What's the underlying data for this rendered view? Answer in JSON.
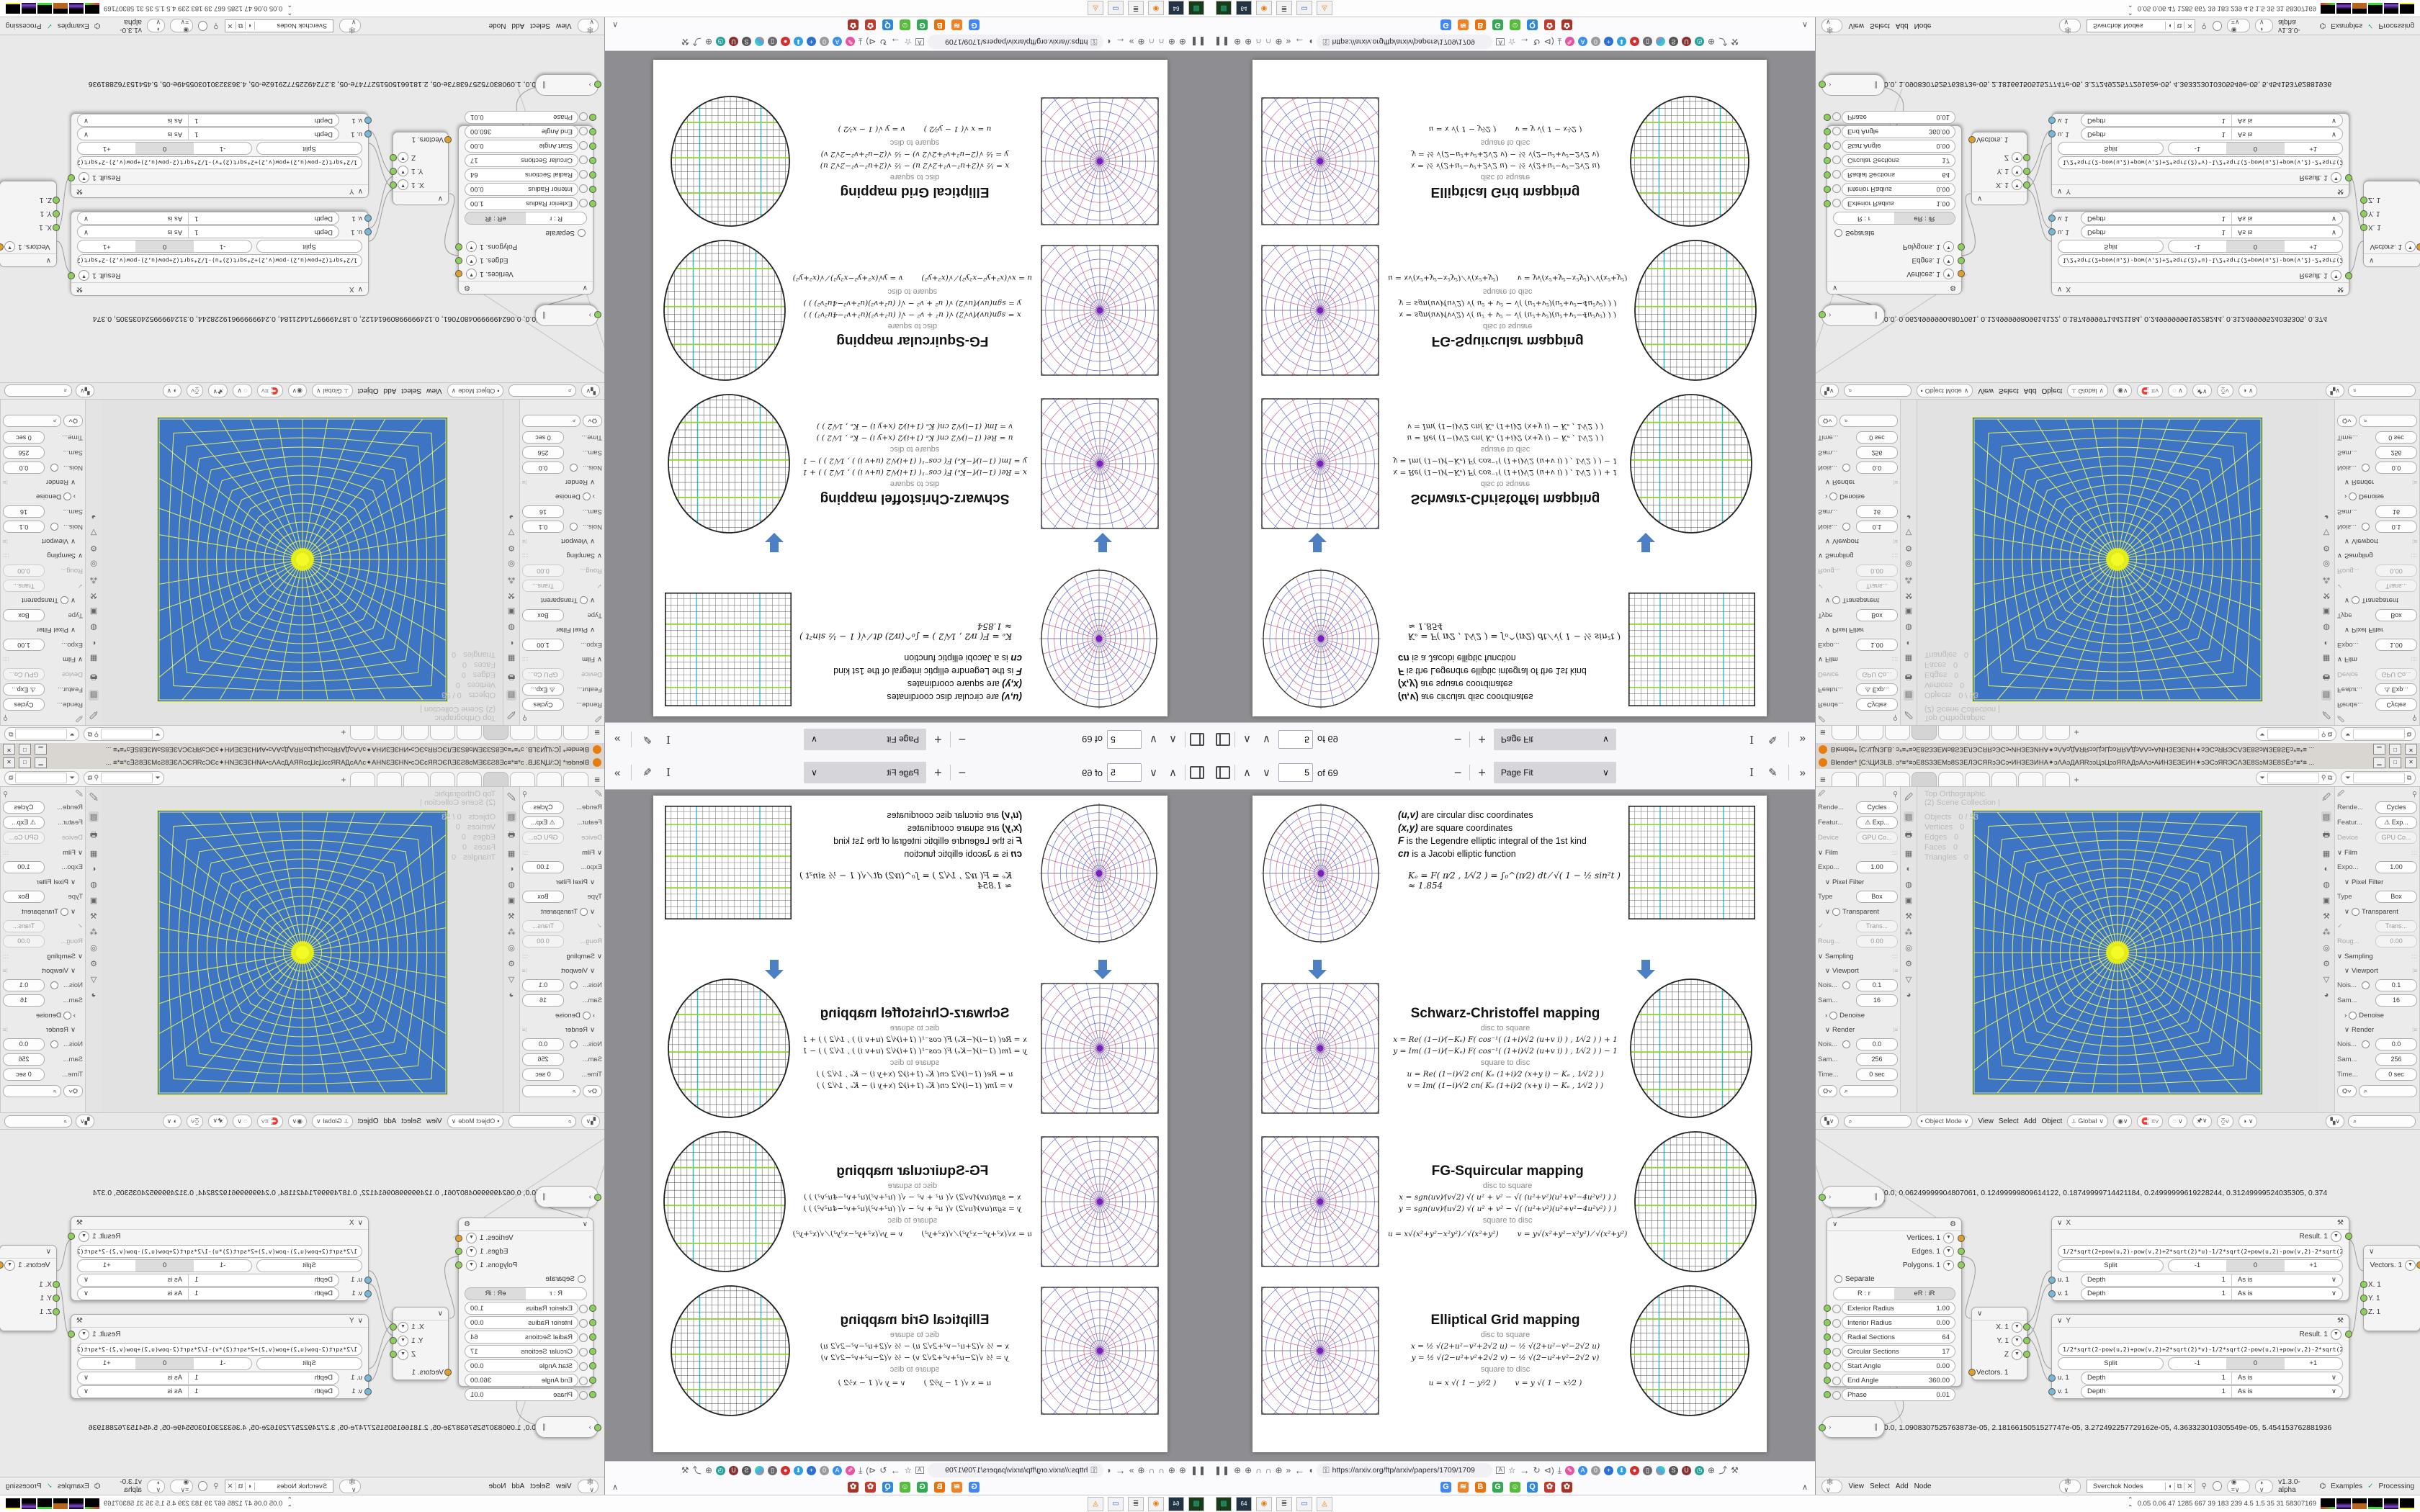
{
  "pdf": {
    "toolbar": {
      "page_value": "5",
      "of_pages": "of 69",
      "zoom_mode": "Page Fit"
    },
    "page": {
      "legend": [
        {
          "lead": "(u,v)",
          "text": " are circular disc coordinates"
        },
        {
          "lead": "(x,y)",
          "text": " are square coordinates"
        },
        {
          "lead": "F",
          "text": " is the Legendre elliptic integral of the 1st kind"
        },
        {
          "lead": "cn",
          "text": " is a Jacobi elliptic function"
        }
      ],
      "ke_formula": "Kₑ =  F( π⁄2 , 1⁄√2 )  =  ∫₀^(π⁄2)  dt ⁄ √( 1 − ½ sin²t )   ≈ 1.854",
      "sections": [
        {
          "title": "Schwarz-Christoffel mapping",
          "d2s_label": "disc to square",
          "s2d_label": "square to disc",
          "d2s_1": "x = Re( (1−i)⁄(−Kₑ) F( cos⁻¹( (1+i)⁄√2 (u+v i) ) , 1⁄√2 ) ) + 1",
          "d2s_2": "y = Im( (1−i)⁄(−Kₑ) F( cos⁻¹( (1+i)⁄√2 (u+v i) ) , 1⁄√2 ) ) − 1",
          "s2d_1": "u = Re( (1−i)⁄√2 cn( Kₑ (1+i)⁄2 (x+y i) − Kₑ , 1⁄√2 ) )",
          "s2d_2": "v = Im( (1−i)⁄√2 cn( Kₑ (1+i)⁄2 (x+y i) − Kₑ , 1⁄√2 ) )"
        },
        {
          "title": "FG-Squircular mapping",
          "d2s_label": "disc to square",
          "s2d_label": "square to disc",
          "d2s_1": "x = sgn(uv)⁄(v√2) √( u² + v² − √( (u²+v²)(u²+v²−4u²v²) ) )",
          "d2s_2": "y = sgn(uv)⁄(u√2) √( u² + v² − √( (u²+v²)(u²+v²−4u²v²) ) )",
          "s2d_1": "u = x√(x²+y²−x²y²) ⁄ √(x²+y²)",
          "s2d_2": "v = y√(x²+y²−x²y²) ⁄ √(x²+y²)"
        },
        {
          "title": "Elliptical Grid mapping",
          "d2s_label": "disc to square",
          "s2d_label": "square to disc",
          "d2s_1": "x = ½ √(2+u²−v²+2√2 u)  −  ½ √(2+u²−v²−2√2 u)",
          "d2s_2": "y = ½ √(2−u²+v²+2√2 v)  −  ½ √(2−u²+v²−2√2 v)",
          "s2d_1": "u = x √( 1 − y²⁄2 )",
          "s2d_2": "v = y √( 1 − x²⁄2 )"
        }
      ]
    },
    "nav": {
      "url": "https://arxiv.org/ftp/arxiv/papers/1709/1709"
    },
    "bookmarks": [
      {
        "glyph": "G"
      },
      {
        "glyph": "≋"
      },
      {
        "glyph": "B"
      },
      {
        "glyph": "G"
      },
      {
        "glyph": "☺"
      },
      {
        "glyph": "Q"
      },
      {
        "glyph": "✿"
      },
      {
        "glyph": "✿"
      }
    ]
  },
  "blender": {
    "title": "Blender* [C:\\ЦИЗLB. ᴐ*≡*≡ᴐЕ8SЗЗЕМᴐ8SЗЕЛЭСЯRᴐЭСᴐ•ИНЗЕЗИНА✦ᴐΛАᴐДАЯRᴐᴐЦᴐЦᴐᴐЯRАДᴐАΛᴐ•АИНЗЕЗЕИН✦ᴐЭСᴐЯRЭСΛЗЕ8SᴐМЗЕ8SЁᴐ*≡*≡ ...",
    "props": {
      "r1l": "Rende...",
      "r1v": "Cycles",
      "r2l": "Featur...",
      "r2v": "⚠ Exp...",
      "r3l": "Device",
      "r3v": "GPU Co...",
      "film": "Film",
      "r4l": "Expo...",
      "r4v": "1.00",
      "pixel_filter": "Pixel Filter",
      "r5l": "Type",
      "r5v": "Box",
      "transparent": "Transparent",
      "r6v": "Trans...",
      "r7l": "Roug...",
      "r7v": "0.00",
      "sampling": "Sampling",
      "viewport": "Viewport",
      "r8l": "Nois...",
      "r8v": "0.1",
      "r9l": "Sam...",
      "r9v": "16",
      "denoise": "Denoise",
      "render": "Render",
      "r10l": "Nois...",
      "r10v": "0.0",
      "r11l": "Sam...",
      "r11v": "256",
      "r12l": "Time...",
      "r12v": "0 sec"
    },
    "overlay": {
      "l1": "Top Orthographic",
      "l2": "(2) Scene Collection |",
      "s1l": "Objects",
      "s1v": "0 / 53",
      "s2l": "Vertices",
      "s2v": "0",
      "s3l": "Edges",
      "s3v": "0",
      "s4l": "Faces",
      "s4v": "0",
      "s5l": "Triangles",
      "s5v": "0"
    },
    "vheader": {
      "mode": "Object Mode",
      "m1": "View",
      "m2": "Select",
      "m3": "Add",
      "m4": "Object",
      "orient": "Global"
    },
    "nodes": {
      "array_top": "[0.0, 0.06249999904807061, 0.12499999809614122, 0.18749999714421184, 0.24999999619228244, 0.31249999524035305, 0.374",
      "array_bottom": "[0.0, 1.0908307525763873e-05, 2.1816615051527747e-05, 3.272492257729162e-05, 4.363323010305549e-05, 5.454153762881936",
      "polar": {
        "o1": "Vertices. 1",
        "o2": "Edges. 1",
        "o3": "Polygons. 1",
        "separate": "Separate",
        "tab_a": "R : r",
        "tab_b": "eR : iR",
        "p1l": "Exterior Radius",
        "p1v": "1.00",
        "p2l": "Interior Radius",
        "p2v": "0.00",
        "p3l": "Radial Sections",
        "p3v": "64",
        "p4l": "Circular Sections",
        "p4v": "17",
        "p5l": "Start Angle",
        "p5v": "0.00",
        "p6l": "End Angle",
        "p6v": "360.00",
        "p7l": "Phase",
        "p7v": "0.01"
      },
      "x": {
        "title": "X",
        "result": "Result. 1",
        "formula": "1/2*sqrt(2+pow(u,2)-pow(v,2)+2*sqrt(2)*u)-1/2*sqrt(2+pow(u,2)-pow(v,2)-2*sqrt(2)*u)",
        "split": "Split",
        "s1": "-1",
        "s2": "0",
        "s3": "+1",
        "i1": "u. 1",
        "i2": "v. 1",
        "depth": "Depth",
        "dv": "1",
        "asis": "As is"
      },
      "y": {
        "title": "Y",
        "result": "Result. 1",
        "formula": "1/2*sqrt(2-pow(u,2)+pow(v,2)+2*sqrt(2)*v)-1/2*sqrt(2-pow(u,2)+pow(v,2)-2*sqrt(2)*v)",
        "split": "Split",
        "s1": "-1",
        "s2": "0",
        "s3": "+1",
        "i1": "u. 1",
        "i2": "v. 1",
        "depth": "Depth",
        "dv": "1",
        "asis": "As is"
      },
      "vout": {
        "o1": "X. 1",
        "o2": "Y. 1",
        "o3": "Z",
        "in": "Vectors. 1"
      },
      "vin": {
        "out": "Vectors. 1",
        "i1": "X. 1",
        "i2": "Y. 1",
        "i3": "Z. 1"
      }
    },
    "status": {
      "m1": "View",
      "m2": "Select",
      "m3": "Add",
      "m4": "Node",
      "search": "Sverchok Nodes",
      "version": "v1.3.0-alpha",
      "examples": "Examples",
      "processing": "Processing"
    }
  },
  "taskbar": {
    "tray": "0.05 0.06   47   1285 667   39   183   239   4.5   1.5   35   31   58307169"
  }
}
